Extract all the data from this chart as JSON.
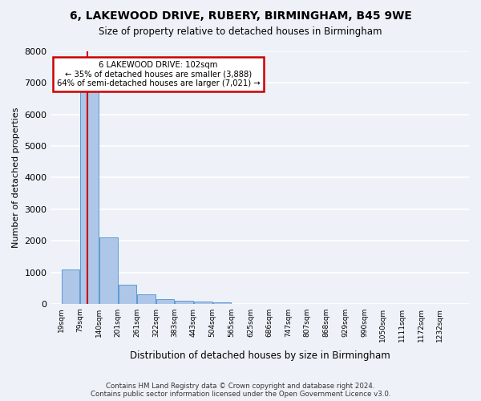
{
  "title1": "6, LAKEWOOD DRIVE, RUBERY, BIRMINGHAM, B45 9WE",
  "title2": "Size of property relative to detached houses in Birmingham",
  "xlabel": "Distribution of detached houses by size in Birmingham",
  "ylabel": "Number of detached properties",
  "footer1": "Contains HM Land Registry data © Crown copyright and database right 2024.",
  "footer2": "Contains public sector information licensed under the Open Government Licence v3.0.",
  "property_size": 102,
  "annotation_title": "6 LAKEWOOD DRIVE: 102sqm",
  "annotation_line1": "← 35% of detached houses are smaller (3,888)",
  "annotation_line2": "64% of semi-detached houses are larger (7,021) →",
  "bin_labels": [
    "19sqm",
    "79sqm",
    "140sqm",
    "201sqm",
    "261sqm",
    "322sqm",
    "383sqm",
    "443sqm",
    "504sqm",
    "565sqm",
    "625sqm",
    "686sqm",
    "747sqm",
    "807sqm",
    "868sqm",
    "929sqm",
    "990sqm",
    "1050sqm",
    "1111sqm",
    "1172sqm",
    "1232sqm"
  ],
  "bin_left_edges": [
    19,
    79,
    140,
    201,
    261,
    322,
    383,
    443,
    504,
    565,
    625,
    686,
    747,
    807,
    868,
    929,
    990,
    1050,
    1111,
    1172,
    1232
  ],
  "bar_heights": [
    1100,
    7350,
    2100,
    600,
    300,
    150,
    100,
    70,
    50,
    0,
    0,
    0,
    0,
    0,
    0,
    0,
    0,
    0,
    0,
    0,
    0
  ],
  "bar_color": "#aec6e8",
  "bar_edge_color": "#5b9bd5",
  "vline_color": "#cc0000",
  "ylim": [
    0,
    8000
  ],
  "yticks": [
    0,
    1000,
    2000,
    3000,
    4000,
    5000,
    6000,
    7000,
    8000
  ],
  "background_color": "#eef2f8",
  "plot_bg_color": "#eef2f8",
  "grid_color": "#ffffff",
  "annotation_box_color": "#ffffff",
  "annotation_border_color": "#cc0000"
}
